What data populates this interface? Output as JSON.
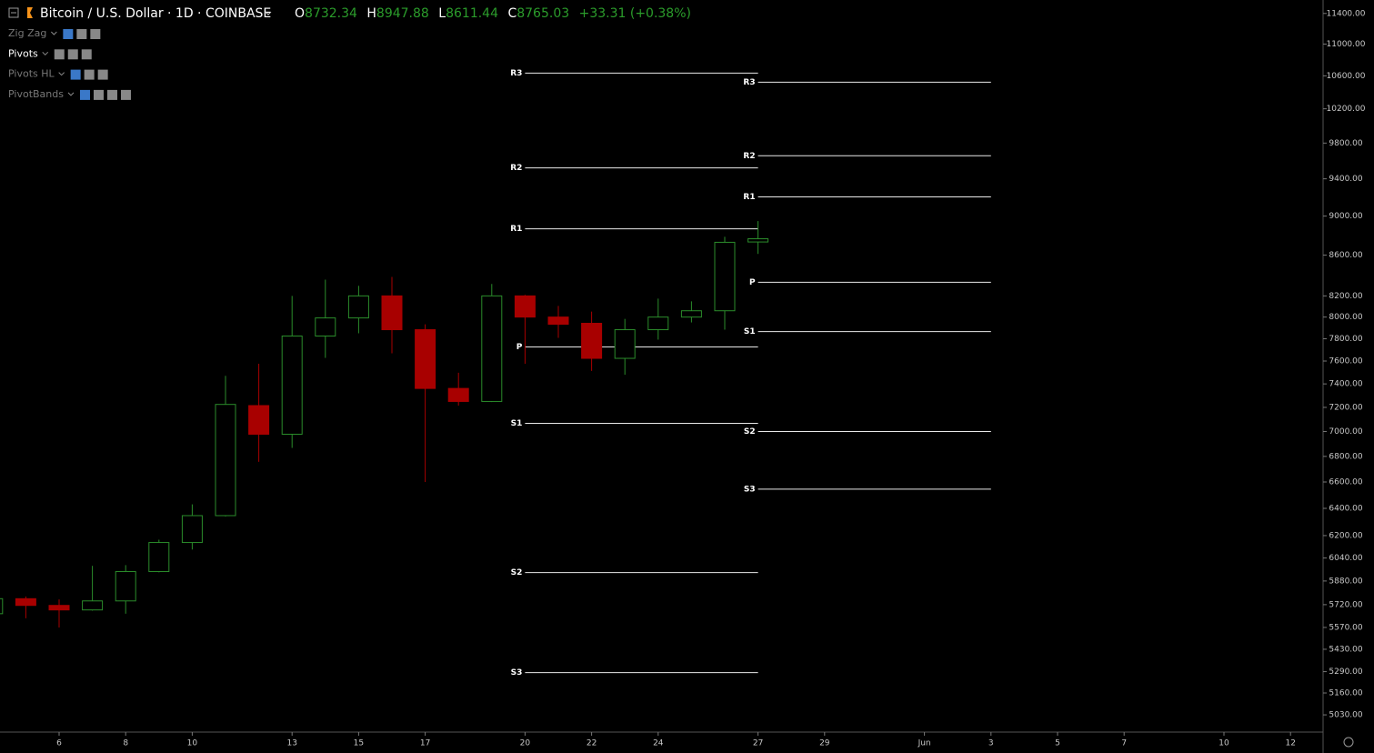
{
  "chart_data": {
    "type": "candlestick",
    "title": "Bitcoin / U.S. Dollar · 1D · COINBASE",
    "ohlc_labels": [
      "O",
      "H",
      "L",
      "C"
    ],
    "change": "+33.31 (+0.38%)",
    "indicators": [
      "Zig Zag",
      "Pivots",
      "Pivots HL",
      "PivotBands"
    ],
    "categories": [
      null,
      null,
      "6",
      null,
      "8",
      null,
      "10",
      null,
      null,
      "13",
      null,
      "15",
      null,
      "17",
      null,
      null,
      "20",
      null,
      "22",
      null,
      "24",
      null,
      null,
      "27",
      null,
      "29",
      null,
      null,
      "Jun",
      null,
      "3",
      null,
      "5",
      null,
      "7",
      null,
      null,
      "10",
      null,
      "12"
    ],
    "open": [
      5660,
      5760,
      5715,
      5685,
      5745,
      5945,
      6150,
      6346,
      7215,
      6978,
      7825,
      7992,
      8200,
      7883,
      7361,
      7250,
      8200,
      8000,
      7942,
      7624,
      7883,
      8000,
      8059,
      8732.34,
      null,
      null,
      null,
      null,
      null,
      null,
      null,
      null,
      null,
      null,
      null,
      null,
      null,
      null,
      null,
      null
    ],
    "high": [
      5780,
      5775,
      5755,
      5985,
      5990,
      6170,
      6430,
      7470,
      7576,
      8200,
      8357,
      8297,
      8383,
      7933,
      7497,
      8315,
      8210,
      8105,
      8051,
      7983,
      8174,
      8148,
      8785,
      8947.88,
      null,
      null,
      null,
      null,
      null,
      null,
      null,
      null,
      null,
      null,
      null,
      null,
      null,
      null,
      null,
      null
    ],
    "low": [
      5650,
      5630,
      5570,
      5680,
      5660,
      5940,
      6100,
      6340,
      6757,
      6868,
      7628,
      7850,
      7669,
      6600,
      7215,
      7245,
      7576,
      7808,
      7513,
      7480,
      7792,
      7950,
      7883,
      8611.44,
      null,
      null,
      null,
      null,
      null,
      null,
      null,
      null,
      null,
      null,
      null,
      null,
      null,
      null,
      null,
      null
    ],
    "close": [
      5760,
      5715,
      5685,
      5745,
      5945,
      6150,
      6346,
      7225,
      6978,
      7825,
      7992,
      8200,
      7883,
      7361,
      7250,
      8200,
      8000,
      7933,
      7624,
      7883,
      8000,
      8059,
      8729,
      8765.03,
      null,
      null,
      null,
      null,
      null,
      null,
      null,
      null,
      null,
      null,
      null,
      null,
      null,
      null,
      null,
      null
    ],
    "up_color": "#2b8c2b",
    "down_color": "#a80000",
    "yscale": "log",
    "ylim": [
      4930,
      11580
    ],
    "yticks": [
      {
        "value": 11400,
        "label": "11400.00"
      },
      {
        "value": 11000,
        "label": "11000.00"
      },
      {
        "value": 10600,
        "label": "10600.00"
      },
      {
        "value": 10200,
        "label": "10200.00"
      },
      {
        "value": 9800,
        "label": "9800.00"
      },
      {
        "value": 9400,
        "label": "9400.00"
      },
      {
        "value": 9000,
        "label": "9000.00"
      },
      {
        "value": 8600,
        "label": "8600.00"
      },
      {
        "value": 8200,
        "label": "8200.00"
      },
      {
        "value": 8000,
        "label": "8000.00"
      },
      {
        "value": 7800,
        "label": "7800.00"
      },
      {
        "value": 7600,
        "label": "7600.00"
      },
      {
        "value": 7400,
        "label": "7400.00"
      },
      {
        "value": 7200,
        "label": "7200.00"
      },
      {
        "value": 7000,
        "label": "7000.00"
      },
      {
        "value": 6800,
        "label": "6800.00"
      },
      {
        "value": 6600,
        "label": "6600.00"
      },
      {
        "value": 6400,
        "label": "6400.00"
      },
      {
        "value": 6200,
        "label": "6200.00"
      },
      {
        "value": 6040,
        "label": "6040.00"
      },
      {
        "value": 5880,
        "label": "5880.00"
      },
      {
        "value": 5720,
        "label": "5720.00"
      },
      {
        "value": 5570,
        "label": "5570.00"
      },
      {
        "value": 5430,
        "label": "5430.00"
      },
      {
        "value": 5290,
        "label": "5290.00"
      },
      {
        "value": 5160,
        "label": "5160.00"
      },
      {
        "value": 5030,
        "label": "5030.00"
      }
    ],
    "pivots": [
      {
        "start": "20",
        "end": "27",
        "label_side": "left",
        "levels": [
          {
            "label": "R3",
            "value": 10633
          },
          {
            "label": "R2",
            "value": 9520
          },
          {
            "label": "R1",
            "value": 8867
          },
          {
            "label": "P",
            "value": 7726
          },
          {
            "label": "S1",
            "value": 7067
          },
          {
            "label": "S2",
            "value": 5938
          },
          {
            "label": "S3",
            "value": 5284
          }
        ]
      },
      {
        "start": "27",
        "end": "3",
        "label_side": "left",
        "levels": [
          {
            "label": "R3",
            "value": 10521
          },
          {
            "label": "R2",
            "value": 9656
          },
          {
            "label": "R1",
            "value": 9204
          },
          {
            "label": "P",
            "value": 8331
          },
          {
            "label": "S1",
            "value": 7865
          },
          {
            "label": "S2",
            "value": 7000
          },
          {
            "label": "S3",
            "value": 6545
          }
        ]
      }
    ]
  }
}
